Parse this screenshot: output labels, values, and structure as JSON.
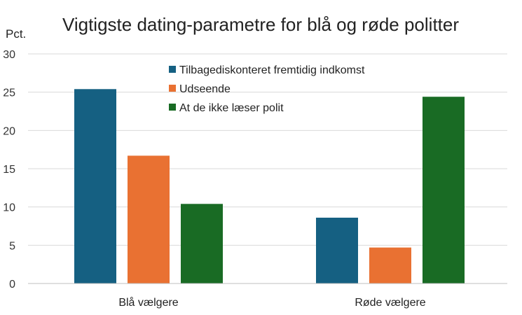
{
  "chart_data": {
    "type": "bar",
    "title": "Vigtigste dating-parametre for blå og røde politter",
    "ylabel": "Pct.",
    "xlabel": "",
    "categories": [
      "Blå vælgere",
      "Røde vælgere"
    ],
    "ylim": [
      0,
      30
    ],
    "yticks": [
      0,
      5,
      10,
      15,
      20,
      25,
      30
    ],
    "grid": true,
    "legend_position": "top-center",
    "series": [
      {
        "name": "Tilbagediskonteret fremtidig indkomst",
        "color": "#156082",
        "values": [
          25.4,
          8.6
        ]
      },
      {
        "name": "Udseende",
        "color": "#E97132",
        "values": [
          16.7,
          4.7
        ]
      },
      {
        "name": "At de ikke læser polit",
        "color": "#196B24",
        "values": [
          10.4,
          24.4
        ]
      }
    ]
  }
}
